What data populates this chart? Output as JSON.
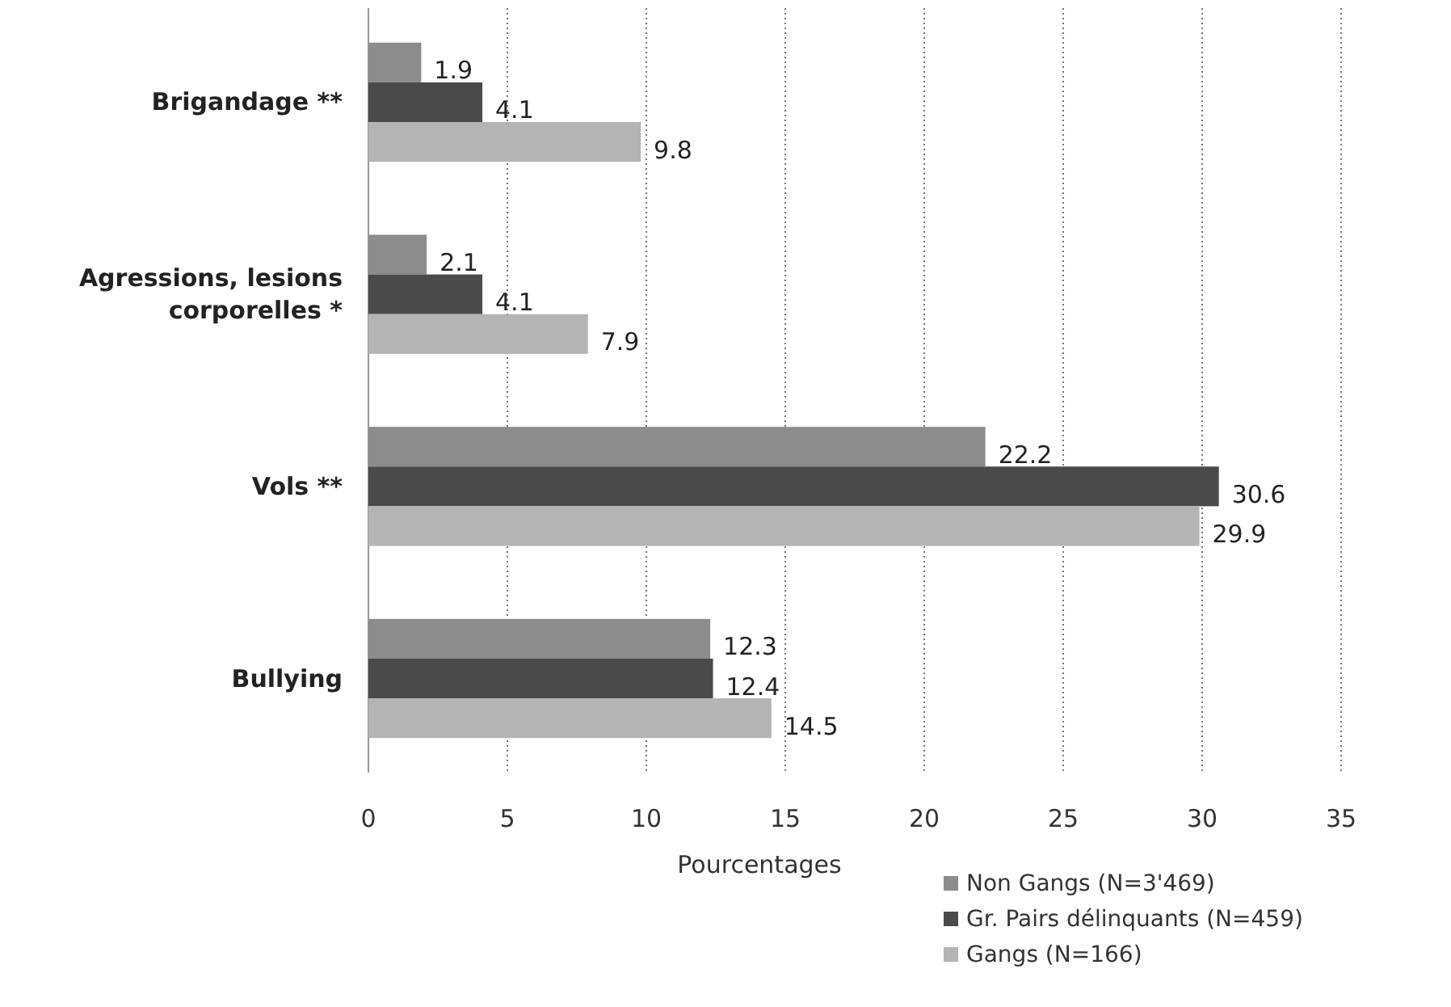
{
  "chart_data": {
    "type": "bar",
    "orientation": "horizontal",
    "categories": [
      "Brigandage **",
      "Agressions, lesions corporelles *",
      "Vols **",
      "Bullying"
    ],
    "series": [
      {
        "name": "Non Gangs (N=3'469)",
        "color": "#8c8c8c",
        "values": [
          1.9,
          2.1,
          22.2,
          12.3
        ]
      },
      {
        "name": "Gr. Pairs délinquants (N=459)",
        "color": "#4a4a4a",
        "values": [
          4.1,
          4.1,
          30.6,
          12.4
        ]
      },
      {
        "name": "Gangs (N=166)",
        "color": "#b4b4b4",
        "values": [
          9.8,
          7.9,
          29.9,
          14.5
        ]
      }
    ],
    "xlim": [
      0,
      35
    ],
    "xticks": [
      0,
      5,
      10,
      15,
      20,
      25,
      30,
      35
    ],
    "xlabel": "Pourcentages",
    "grid": "x",
    "legend": "bottom right",
    "data_labels": true
  }
}
